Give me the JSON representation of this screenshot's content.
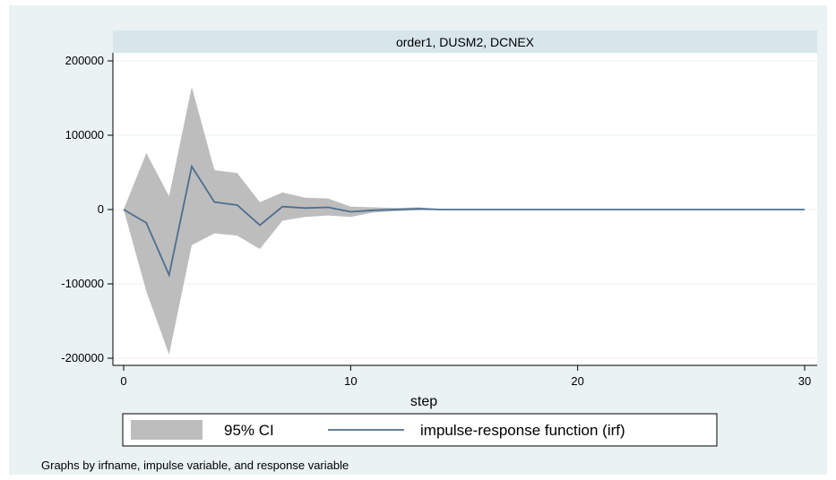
{
  "chart_data": {
    "type": "line",
    "panel_title": "order1, DUSM2, DCNEX",
    "xlabel": "step",
    "ylabel": "",
    "xlim": [
      0,
      30
    ],
    "ylim": [
      -200000,
      200000
    ],
    "x_ticks": [
      "0",
      "10",
      "20",
      "30"
    ],
    "y_ticks": [
      "-200000",
      "-100000",
      "0",
      "100000",
      "200000"
    ],
    "grid": true,
    "legend_position": "bottom",
    "x": [
      0,
      1,
      2,
      3,
      4,
      5,
      6,
      7,
      8,
      9,
      10,
      11,
      12,
      13,
      14,
      15,
      16,
      17,
      18,
      19,
      20,
      21,
      22,
      23,
      24,
      25,
      26,
      27,
      28,
      29,
      30
    ],
    "series": [
      {
        "name": "impulse-response function (irf)",
        "values": [
          0,
          -18000,
          -88000,
          58000,
          10000,
          6000,
          -21000,
          4000,
          2000,
          3000,
          -3000,
          -1000,
          0,
          1000,
          0,
          0,
          0,
          0,
          0,
          0,
          0,
          0,
          0,
          0,
          0,
          0,
          0,
          0,
          0,
          0,
          0
        ]
      },
      {
        "name": "95% CI",
        "lower": [
          0,
          -110000,
          -195000,
          -48000,
          -32000,
          -35000,
          -53000,
          -15000,
          -10000,
          -8000,
          -10000,
          -4000,
          -2000,
          -1000,
          -500,
          -300,
          -200,
          -100,
          0,
          0,
          0,
          0,
          0,
          0,
          0,
          0,
          0,
          0,
          0,
          0,
          0
        ],
        "upper": [
          0,
          76000,
          18000,
          165000,
          53000,
          49000,
          10000,
          23000,
          16000,
          15000,
          4000,
          3000,
          2000,
          3000,
          500,
          300,
          200,
          100,
          0,
          0,
          0,
          0,
          0,
          0,
          0,
          0,
          0,
          0,
          0,
          0,
          0
        ]
      }
    ],
    "colors": {
      "line": "#4d6e8f",
      "band": "#bdbdbd",
      "background": "#eaf2f3",
      "panel_header": "#d8e6ec",
      "grid": "#eaf2f3"
    }
  },
  "legend": {
    "ci_label": "95% CI",
    "irf_label": "impulse-response function (irf)"
  },
  "note": "Graphs by irfname, impulse variable, and response variable"
}
